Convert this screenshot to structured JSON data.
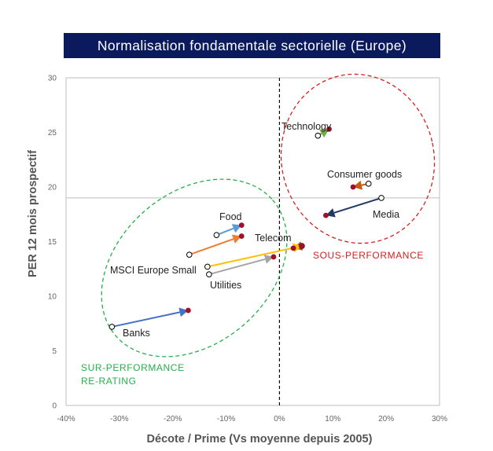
{
  "chart_data": {
    "type": "scatter",
    "title": "Normalisation fondamentale sectorielle (Europe)",
    "xlabel": "Décote / Prime (Vs moyenne depuis 2005)",
    "ylabel": "PER 12 mois prospectif",
    "xlim": [
      -0.4,
      0.3
    ],
    "ylim": [
      0,
      30
    ],
    "x_ticks": [
      -0.4,
      -0.3,
      -0.2,
      -0.1,
      0.0,
      0.1,
      0.2,
      0.3
    ],
    "x_tick_labels": [
      "-40%",
      "-30%",
      "-20%",
      "-10%",
      "0%",
      "10%",
      "20%",
      "30%"
    ],
    "y_ticks": [
      0,
      5,
      10,
      15,
      20,
      25,
      30
    ],
    "y_tick_labels": [
      "0",
      "5",
      "10",
      "15",
      "20",
      "25",
      "30"
    ],
    "reference_lines": {
      "vertical_x": 0.0,
      "horizontal_y": 19.0
    },
    "series": [
      {
        "name": "Technology",
        "from": [
          0.072,
          24.7
        ],
        "to": [
          0.093,
          25.3
        ],
        "color": "#70ad47"
      },
      {
        "name": "Consumer goods",
        "from": [
          0.167,
          20.3
        ],
        "to": [
          0.138,
          20.0
        ],
        "color": "#c55a11"
      },
      {
        "name": "Media",
        "from": [
          0.191,
          19.0
        ],
        "to": [
          0.087,
          17.4
        ],
        "color": "#203864"
      },
      {
        "name": "Food",
        "from": [
          -0.118,
          15.6
        ],
        "to": [
          -0.071,
          16.5
        ],
        "color": "#5b9bd5"
      },
      {
        "name": "",
        "from": [
          -0.169,
          13.8
        ],
        "to": [
          -0.071,
          15.5
        ],
        "color": "#ed7d31"
      },
      {
        "name": "Telecom",
        "from": [
          0.042,
          14.6
        ],
        "to": [
          0.026,
          14.4
        ],
        "color": "#c55a11"
      },
      {
        "name": "MSCI Europe Small",
        "from": [
          -0.135,
          12.7
        ],
        "to": [
          0.042,
          14.6
        ],
        "color": "#ffc000"
      },
      {
        "name": "Utilities",
        "from": [
          -0.132,
          12.0
        ],
        "to": [
          -0.011,
          13.6
        ],
        "color": "#a5a5a5"
      },
      {
        "name": "Banks",
        "from": [
          -0.314,
          7.2
        ],
        "to": [
          -0.171,
          8.7
        ],
        "color": "#4472c4"
      }
    ],
    "zones": [
      {
        "label_lines": [
          "SUR-PERFORMANCE",
          "RE-RATING"
        ],
        "color": "#22b04b"
      },
      {
        "label_lines": [
          "SOUS-PERFORMANCE"
        ],
        "color": "#d42020"
      }
    ],
    "grid": false
  }
}
